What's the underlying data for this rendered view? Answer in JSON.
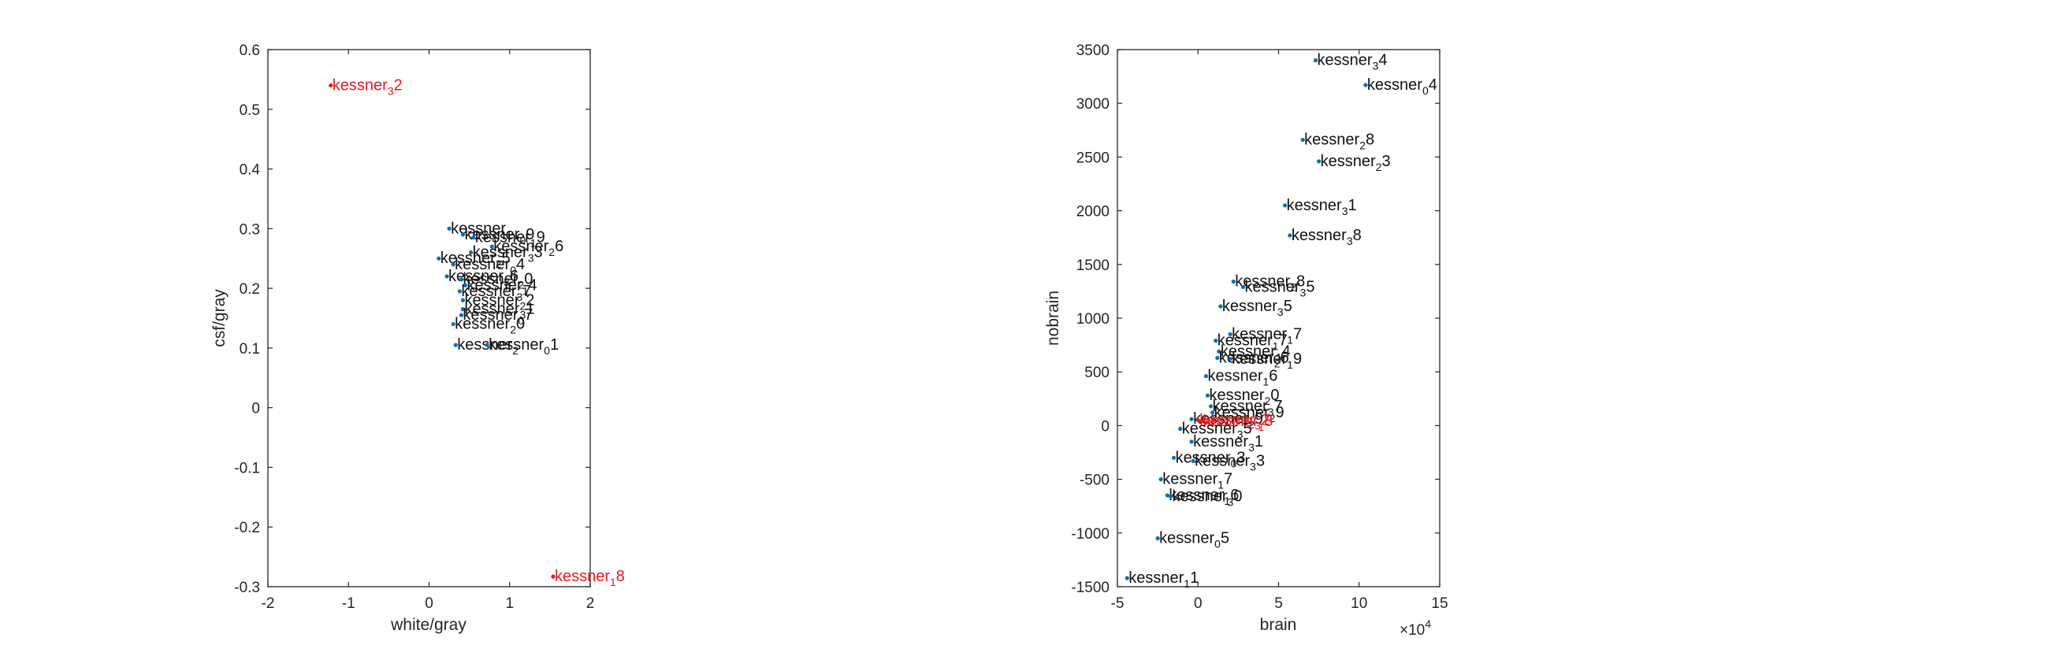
{
  "colors": {
    "normal": "#111111",
    "outlier": "#e8191e",
    "marker": "#0072bd",
    "axis": "#262626"
  },
  "chart_data": [
    {
      "type": "scatter",
      "title": "",
      "xlabel": "white/gray",
      "ylabel": "csf/gray",
      "xlim": [
        -2,
        2
      ],
      "ylim": [
        -0.3,
        0.6
      ],
      "xticks": [
        -2,
        -1,
        0,
        1,
        2
      ],
      "yticks": [
        -0.3,
        -0.2,
        -0.1,
        0,
        0.1,
        0.2,
        0.3,
        0.4,
        0.5,
        0.6
      ],
      "grid": false,
      "points": [
        {
          "x": -1.22,
          "y": 0.54,
          "prefix": "kessner",
          "sub": "3",
          "suffix": "2",
          "outlier": true
        },
        {
          "x": 1.54,
          "y": -0.283,
          "prefix": "kessner",
          "sub": "1",
          "suffix": "8",
          "outlier": true
        },
        {
          "x": 0.25,
          "y": 0.3,
          "prefix": "kessner",
          "sub": "1",
          "suffix": "",
          "outlier": false
        },
        {
          "x": 0.42,
          "y": 0.29,
          "prefix": "kessner",
          "sub": "0",
          "suffix": "9",
          "outlier": false
        },
        {
          "x": 0.55,
          "y": 0.285,
          "prefix": "kessner",
          "sub": "1",
          "suffix": "9",
          "outlier": false
        },
        {
          "x": 0.78,
          "y": 0.27,
          "prefix": "kessner",
          "sub": "2",
          "suffix": "6",
          "outlier": false
        },
        {
          "x": 0.52,
          "y": 0.26,
          "prefix": "kessner",
          "sub": "3",
          "suffix": "3",
          "outlier": false
        },
        {
          "x": 0.12,
          "y": 0.25,
          "prefix": "kessner",
          "sub": "2",
          "suffix": "5",
          "outlier": false
        },
        {
          "x": 0.3,
          "y": 0.24,
          "prefix": "kessner",
          "sub": "0",
          "suffix": "4",
          "outlier": false
        },
        {
          "x": 0.22,
          "y": 0.22,
          "prefix": "kessner",
          "sub": "3",
          "suffix": "6",
          "outlier": false
        },
        {
          "x": 0.4,
          "y": 0.215,
          "prefix": "kessner",
          "sub": "2",
          "suffix": "0",
          "outlier": false
        },
        {
          "x": 0.45,
          "y": 0.205,
          "prefix": "kessner",
          "sub": "1",
          "suffix": "4",
          "outlier": false
        },
        {
          "x": 0.38,
          "y": 0.195,
          "prefix": "kessner",
          "sub": "3",
          "suffix": "7",
          "outlier": false
        },
        {
          "x": 0.42,
          "y": 0.18,
          "prefix": "kessner",
          "sub": "2",
          "suffix": "2",
          "outlier": false
        },
        {
          "x": 0.42,
          "y": 0.165,
          "prefix": "kessner",
          "sub": "3",
          "suffix": "1",
          "outlier": false
        },
        {
          "x": 0.4,
          "y": 0.155,
          "prefix": "kessner",
          "sub": "0",
          "suffix": "7",
          "outlier": false
        },
        {
          "x": 0.3,
          "y": 0.14,
          "prefix": "kessner",
          "sub": "2",
          "suffix": "0",
          "outlier": false
        },
        {
          "x": 0.33,
          "y": 0.105,
          "prefix": "kessner",
          "sub": "2",
          "suffix": "",
          "outlier": false
        },
        {
          "x": 0.72,
          "y": 0.105,
          "prefix": "kessner",
          "sub": "0",
          "suffix": "1",
          "outlier": false
        }
      ]
    },
    {
      "type": "scatter",
      "title": "",
      "xlabel": "brain",
      "ylabel": "nobrain",
      "xlim": [
        -5,
        15
      ],
      "ylim": [
        -1500,
        3500
      ],
      "xticks": [
        -5,
        0,
        5,
        10,
        15
      ],
      "yticks": [
        -1500,
        -1000,
        -500,
        0,
        500,
        1000,
        1500,
        2000,
        2500,
        3000,
        3500
      ],
      "x_exponent_base": "×10",
      "x_exponent": "4",
      "grid": false,
      "points": [
        {
          "x": 7.3,
          "y": 3400,
          "prefix": "kessner",
          "sub": "3",
          "suffix": "4",
          "outlier": false
        },
        {
          "x": 10.4,
          "y": 3170,
          "prefix": "kessner",
          "sub": "0",
          "suffix": "4",
          "outlier": false
        },
        {
          "x": 6.5,
          "y": 2660,
          "prefix": "kessner",
          "sub": "2",
          "suffix": "8",
          "outlier": false
        },
        {
          "x": 7.5,
          "y": 2460,
          "prefix": "kessner",
          "sub": "2",
          "suffix": "3",
          "outlier": false
        },
        {
          "x": 5.4,
          "y": 2050,
          "prefix": "kessner",
          "sub": "3",
          "suffix": "1",
          "outlier": false
        },
        {
          "x": 5.7,
          "y": 1770,
          "prefix": "kessner",
          "sub": "3",
          "suffix": "8",
          "outlier": false
        },
        {
          "x": 2.2,
          "y": 1340,
          "prefix": "kessner",
          "sub": "2",
          "suffix": "8",
          "outlier": false
        },
        {
          "x": 2.8,
          "y": 1290,
          "prefix": "kessner",
          "sub": "3",
          "suffix": "5",
          "outlier": false
        },
        {
          "x": 1.4,
          "y": 1110,
          "prefix": "kessner",
          "sub": "3",
          "suffix": "5",
          "outlier": false
        },
        {
          "x": 2.0,
          "y": 850,
          "prefix": "kessner",
          "sub": "1",
          "suffix": "7",
          "outlier": false
        },
        {
          "x": 1.1,
          "y": 790,
          "prefix": "kessner",
          "sub": "1",
          "suffix": "7",
          "outlier": false
        },
        {
          "x": 1.3,
          "y": 690,
          "prefix": "kessner",
          "sub": "1",
          "suffix": "4",
          "outlier": false
        },
        {
          "x": 1.2,
          "y": 630,
          "prefix": "kessner",
          "sub": "2",
          "suffix": "6",
          "outlier": false
        },
        {
          "x": 2.0,
          "y": 620,
          "prefix": "kessner",
          "sub": "1",
          "suffix": "9",
          "outlier": false
        },
        {
          "x": 0.5,
          "y": 460,
          "prefix": "kessner",
          "sub": "1",
          "suffix": "6",
          "outlier": false
        },
        {
          "x": 0.6,
          "y": 280,
          "prefix": "kessner",
          "sub": "2",
          "suffix": "0",
          "outlier": false
        },
        {
          "x": 0.8,
          "y": 180,
          "prefix": "kessner",
          "sub": "3",
          "suffix": "7",
          "outlier": false
        },
        {
          "x": 0.9,
          "y": 120,
          "prefix": "kessner",
          "sub": "2",
          "suffix": "9",
          "outlier": false
        },
        {
          "x": -0.4,
          "y": 60,
          "prefix": "kessner",
          "sub": "2",
          "suffix": "9",
          "outlier": false
        },
        {
          "x": 0.0,
          "y": 50,
          "prefix": "kessner",
          "sub": "3",
          "suffix": "2",
          "outlier": true
        },
        {
          "x": 0.2,
          "y": 40,
          "prefix": "kessner",
          "sub": "1",
          "suffix": "8",
          "outlier": true
        },
        {
          "x": -1.1,
          "y": -30,
          "prefix": "kessner",
          "sub": "3",
          "suffix": "5",
          "outlier": false
        },
        {
          "x": -0.4,
          "y": -150,
          "prefix": "kessner",
          "sub": "3",
          "suffix": "1",
          "outlier": false
        },
        {
          "x": -1.5,
          "y": -300,
          "prefix": "kessner",
          "sub": "0",
          "suffix": "3",
          "outlier": false
        },
        {
          "x": -0.3,
          "y": -330,
          "prefix": "kessner",
          "sub": "3",
          "suffix": "3",
          "outlier": false
        },
        {
          "x": -2.3,
          "y": -500,
          "prefix": "kessner",
          "sub": "1",
          "suffix": "7",
          "outlier": false
        },
        {
          "x": -1.9,
          "y": -650,
          "prefix": "kessner",
          "sub": "1",
          "suffix": "6",
          "outlier": false
        },
        {
          "x": -1.7,
          "y": -660,
          "prefix": "kessner",
          "sub": "3",
          "suffix": "0",
          "outlier": false
        },
        {
          "x": -2.5,
          "y": -1050,
          "prefix": "kessner",
          "sub": "0",
          "suffix": "5",
          "outlier": false
        },
        {
          "x": -4.4,
          "y": -1420,
          "prefix": "kessner",
          "sub": "1",
          "suffix": "1",
          "outlier": false
        }
      ]
    }
  ]
}
